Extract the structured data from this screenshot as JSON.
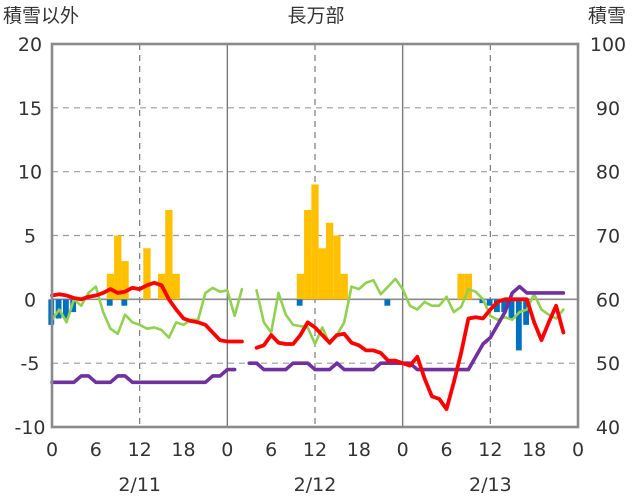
{
  "chart_data": {
    "type": "bar+line",
    "title": "長万部",
    "y_left_label": "積雪以外",
    "y_right_label": "積雪",
    "y_left_ticks": [
      "20",
      "15",
      "10",
      "5",
      "0",
      "-5",
      "-10"
    ],
    "y_right_ticks": [
      "100",
      "90",
      "80",
      "70",
      "60",
      "50",
      "40"
    ],
    "ylim_left": [
      -10,
      20
    ],
    "ylim_right": [
      40,
      100
    ],
    "x_hour_ticks": [
      "0",
      "6",
      "12",
      "18",
      "0",
      "6",
      "12",
      "18",
      "0",
      "6",
      "12",
      "18",
      "0"
    ],
    "dates": [
      "2/11",
      "2/12",
      "2/13"
    ],
    "x_range_hours": [
      0,
      72
    ],
    "grid": "dashed vertical lines at 12h, dashed horizontal lines at 5-unit steps; solid day separators",
    "colors": {
      "snowfall": "#FFC000",
      "negative_bars": "#0070C0",
      "temperature": "#FF0000",
      "wind": "#92D050",
      "snow_depth": "#7030A0"
    },
    "snowfall_bars": [
      [
        8,
        2
      ],
      [
        9,
        5
      ],
      [
        10,
        3
      ],
      [
        13,
        4
      ],
      [
        15,
        2
      ],
      [
        16,
        7
      ],
      [
        17,
        2
      ],
      [
        34,
        2
      ],
      [
        35,
        7
      ],
      [
        36,
        9
      ],
      [
        37,
        4
      ],
      [
        38,
        6
      ],
      [
        39,
        5
      ],
      [
        40,
        2
      ],
      [
        56,
        2
      ],
      [
        57,
        2
      ]
    ],
    "negative_bars": [
      [
        0,
        -2
      ],
      [
        1,
        -1.5
      ],
      [
        2,
        -1.5
      ],
      [
        3,
        -1
      ],
      [
        8,
        -0.5
      ],
      [
        10,
        -0.5
      ],
      [
        34,
        -0.5
      ],
      [
        46,
        -0.5
      ],
      [
        59,
        -0.3
      ],
      [
        60,
        -0.5
      ],
      [
        61,
        -1
      ],
      [
        62,
        -1
      ],
      [
        63,
        -1.5
      ],
      [
        64,
        -4
      ],
      [
        65,
        -2
      ]
    ],
    "temperature_series": [
      [
        0,
        0.3
      ],
      [
        1,
        0.4
      ],
      [
        2,
        0.3
      ],
      [
        3,
        0.1
      ],
      [
        4,
        0
      ],
      [
        5,
        0.2
      ],
      [
        6,
        0.3
      ],
      [
        7,
        0.5
      ],
      [
        8,
        0.8
      ],
      [
        9,
        0.5
      ],
      [
        10,
        0.6
      ],
      [
        11,
        0.9
      ],
      [
        12,
        0.8
      ],
      [
        13,
        1.1
      ],
      [
        14,
        1.3
      ],
      [
        15,
        1.1
      ],
      [
        16,
        0
      ],
      [
        17,
        -0.8
      ],
      [
        18,
        -1.5
      ],
      [
        19,
        -1.7
      ],
      [
        20,
        -1.8
      ],
      [
        21,
        -2
      ],
      [
        22,
        -2.6
      ],
      [
        23,
        -3.2
      ],
      [
        24,
        -3.3
      ],
      [
        25,
        -3.3
      ],
      [
        26,
        -3.3
      ],
      null,
      [
        28,
        -3.8
      ],
      [
        29,
        -3.6
      ],
      [
        30,
        -2.8
      ],
      [
        31,
        -3.4
      ],
      [
        32,
        -3.5
      ],
      [
        33,
        -3.5
      ],
      [
        34,
        -2.8
      ],
      [
        35,
        -1.8
      ],
      [
        36,
        -2.2
      ],
      [
        37,
        -2.8
      ],
      [
        38,
        -3.4
      ],
      [
        39,
        -2.8
      ],
      [
        40,
        -2.7
      ],
      [
        41,
        -3.4
      ],
      [
        42,
        -3.6
      ],
      [
        43,
        -4
      ],
      [
        44,
        -4
      ],
      [
        45,
        -4.2
      ],
      [
        46,
        -4.8
      ],
      [
        47,
        -4.8
      ],
      [
        48,
        -5
      ],
      [
        49,
        -5.2
      ],
      [
        50,
        -4.5
      ],
      [
        51,
        -6.2
      ],
      [
        52,
        -7.6
      ],
      [
        53,
        -7.8
      ],
      [
        54,
        -8.6
      ],
      [
        55,
        -6.5
      ],
      [
        56,
        -4.2
      ],
      [
        57,
        -1.5
      ],
      [
        58,
        -1.4
      ],
      [
        59,
        -1.5
      ],
      [
        60,
        -0.8
      ],
      [
        61,
        -0.2
      ],
      [
        62,
        0
      ],
      [
        63,
        0
      ],
      [
        64,
        0
      ],
      [
        65,
        0
      ],
      [
        66,
        -1.8
      ],
      [
        67,
        -3.2
      ],
      [
        68,
        -1.8
      ],
      [
        69,
        -0.5
      ],
      [
        70,
        -2.6
      ]
    ],
    "wind_series": [
      [
        0,
        -1.6
      ],
      [
        1,
        -0.8
      ],
      [
        2,
        -1.8
      ],
      [
        3,
        0
      ],
      [
        4,
        -0.5
      ],
      [
        5,
        0.5
      ],
      [
        6,
        1
      ],
      [
        7,
        -1
      ],
      [
        8,
        -2.3
      ],
      [
        9,
        -2.7
      ],
      [
        10,
        -1.2
      ],
      [
        11,
        -1.8
      ],
      [
        12,
        -2
      ],
      [
        13,
        -2.3
      ],
      [
        14,
        -2.2
      ],
      [
        15,
        -2.4
      ],
      [
        16,
        -3
      ],
      [
        17,
        -1.8
      ],
      [
        18,
        -2
      ],
      [
        19,
        -1.6
      ],
      [
        20,
        -1.6
      ],
      [
        21,
        0.5
      ],
      [
        22,
        0.9
      ],
      [
        23,
        0.6
      ],
      [
        24,
        0.7
      ],
      [
        25,
        -1.3
      ],
      [
        26,
        0.8
      ],
      null,
      [
        28,
        0.7
      ],
      [
        29,
        -1.8
      ],
      [
        30,
        -2.6
      ],
      [
        31,
        0.5
      ],
      [
        32,
        -1.2
      ],
      [
        33,
        -2
      ],
      [
        34,
        -2.1
      ],
      [
        35,
        -2.2
      ],
      [
        36,
        -3.5
      ],
      [
        37,
        -2.2
      ],
      [
        38,
        -3.5
      ],
      [
        39,
        -2.8
      ],
      [
        40,
        -1.8
      ],
      [
        41,
        1
      ],
      [
        42,
        0.8
      ],
      [
        43,
        1.3
      ],
      [
        44,
        1.5
      ],
      [
        45,
        0.4
      ],
      [
        46,
        1
      ],
      [
        47,
        1.6
      ],
      [
        48,
        0.8
      ],
      [
        49,
        -0.5
      ],
      [
        50,
        -0.8
      ],
      [
        51,
        -0.2
      ],
      [
        52,
        -0.5
      ],
      [
        53,
        -0.5
      ],
      [
        54,
        0.2
      ],
      [
        55,
        -1
      ],
      [
        56,
        -0.6
      ],
      [
        57,
        0.8
      ],
      [
        58,
        0.6
      ],
      [
        59,
        0
      ],
      [
        60,
        -1.3
      ],
      [
        61,
        -1.6
      ],
      [
        62,
        -1.4
      ],
      [
        63,
        -1.6
      ],
      [
        64,
        -1
      ],
      [
        65,
        -0.8
      ],
      [
        66,
        0.4
      ],
      [
        67,
        -0.8
      ],
      [
        68,
        -1.2
      ],
      [
        69,
        -1.5
      ],
      [
        70,
        -0.8
      ]
    ],
    "snow_depth_series": [
      [
        0,
        47
      ],
      [
        1,
        47
      ],
      [
        2,
        47
      ],
      [
        3,
        47
      ],
      [
        4,
        48
      ],
      [
        5,
        48
      ],
      [
        6,
        47
      ],
      [
        7,
        47
      ],
      [
        8,
        47
      ],
      [
        9,
        48
      ],
      [
        10,
        48
      ],
      [
        11,
        47
      ],
      [
        12,
        47
      ],
      [
        13,
        47
      ],
      [
        14,
        47
      ],
      [
        15,
        47
      ],
      [
        16,
        47
      ],
      [
        17,
        47
      ],
      [
        18,
        47
      ],
      [
        19,
        47
      ],
      [
        20,
        47
      ],
      [
        21,
        47
      ],
      [
        22,
        48
      ],
      [
        23,
        48
      ],
      [
        24,
        49
      ],
      [
        25,
        49
      ],
      null,
      [
        27,
        50
      ],
      [
        28,
        50
      ],
      [
        29,
        49
      ],
      [
        30,
        49
      ],
      [
        31,
        49
      ],
      [
        32,
        49
      ],
      [
        33,
        50
      ],
      [
        34,
        50
      ],
      [
        35,
        50
      ],
      [
        36,
        49
      ],
      [
        37,
        49
      ],
      [
        38,
        49
      ],
      [
        39,
        50
      ],
      [
        40,
        49
      ],
      [
        41,
        49
      ],
      [
        42,
        49
      ],
      [
        43,
        49
      ],
      [
        44,
        49
      ],
      [
        45,
        50
      ],
      [
        46,
        50
      ],
      [
        47,
        50
      ],
      [
        48,
        50
      ],
      [
        49,
        50
      ],
      [
        50,
        49
      ],
      [
        51,
        49
      ],
      [
        52,
        49
      ],
      [
        53,
        49
      ],
      [
        54,
        49
      ],
      [
        55,
        49
      ],
      [
        56,
        49
      ],
      [
        57,
        49
      ],
      [
        58,
        51
      ],
      [
        59,
        53
      ],
      [
        60,
        54
      ],
      [
        61,
        56
      ],
      [
        62,
        58
      ],
      [
        63,
        61
      ],
      [
        64,
        62
      ],
      [
        65,
        61
      ],
      [
        66,
        61
      ],
      [
        67,
        61
      ],
      [
        68,
        61
      ],
      [
        69,
        61
      ],
      [
        70,
        61
      ]
    ]
  }
}
